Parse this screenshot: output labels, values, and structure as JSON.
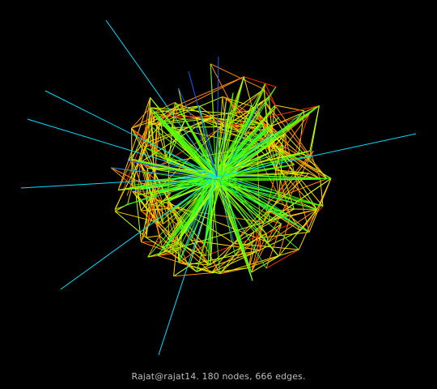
{
  "caption": "Rajat@rajat14. 180 nodes, 666 edges.",
  "graph": {
    "name": "Rajat@rajat14",
    "nodes": 180,
    "edges": 666
  },
  "colors": {
    "background": "#000000",
    "caption": "#bdbdbd",
    "edge_palette": [
      "#ff2a00",
      "#ff8c00",
      "#ffd200",
      "#c8ff00",
      "#4cff00",
      "#00ff7a",
      "#00e0ff",
      "#1a5cff"
    ]
  }
}
